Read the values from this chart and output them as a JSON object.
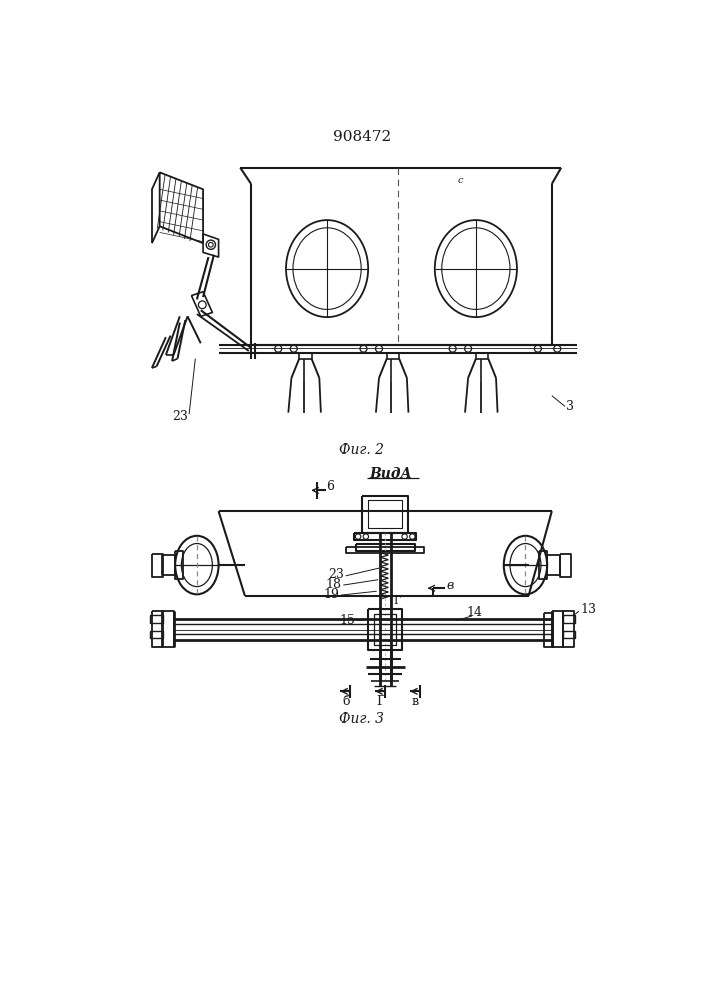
{
  "title": "908472",
  "fig2_caption": "Фиг. 2",
  "fig3_caption": "Фиг. 3",
  "vid_a_label": "ВидА",
  "label_23": "23",
  "label_3": "3",
  "label_6": "6",
  "label_b": "б",
  "label_g": "Г",
  "label_v": "в",
  "label_13": "13",
  "label_14": "14",
  "label_15": "15",
  "label_18": "18",
  "label_19": "19",
  "label_23b": "23",
  "background": "#ffffff",
  "lc": "#1a1a1a"
}
